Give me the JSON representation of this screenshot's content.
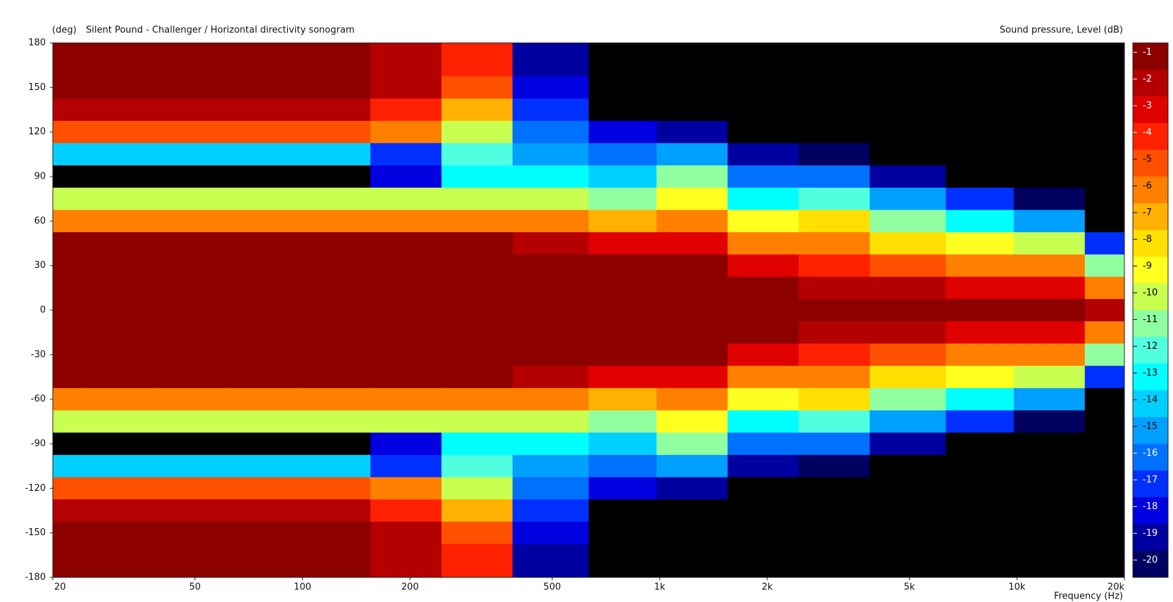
{
  "chart_data": {
    "type": "heatmap",
    "title": "Silent Pound - Challenger / Horizontal directivity sonogram",
    "ylabel": "(deg)",
    "zlabel": "Sound pressure, Level  (dB)",
    "xlabel": "Frequency  (Hz)",
    "log_x": true,
    "xlim": [
      20,
      20000
    ],
    "ylim": [
      -180,
      180
    ],
    "xticks": [
      20,
      50,
      100,
      200,
      500,
      {
        "value": 1000,
        "label": "1k"
      },
      {
        "value": 2000,
        "label": "2k"
      },
      {
        "value": 5000,
        "label": "5k"
      },
      {
        "value": 10000,
        "label": "10k"
      },
      {
        "value": 20000,
        "label": "20k"
      }
    ],
    "yticks": [
      180,
      150,
      120,
      90,
      60,
      30,
      0,
      -30,
      -60,
      -90,
      -120,
      -150,
      -180
    ],
    "colorbar": {
      "levels": [
        -1,
        -2,
        -3,
        -4,
        -5,
        -6,
        -7,
        -8,
        -9,
        -10,
        -11,
        -12,
        -13,
        -14,
        -15,
        -16,
        -17,
        -18,
        -19,
        -20
      ],
      "colors": [
        "#8c0000",
        "#b40000",
        "#e00000",
        "#ff2000",
        "#ff5000",
        "#ff8000",
        "#ffb000",
        "#ffe000",
        "#ffff20",
        "#c8ff50",
        "#90ffa0",
        "#50ffe0",
        "#00ffff",
        "#00d0ff",
        "#00a0ff",
        "#0070ff",
        "#0030ff",
        "#0000e0",
        "#0000a0",
        "#000060"
      ],
      "below_color": "#000000"
    },
    "x": [
      20,
      30,
      50,
      80,
      120,
      200,
      300,
      500,
      800,
      1200,
      2000,
      3000,
      5000,
      8000,
      12000,
      20000
    ],
    "y": [
      180,
      165,
      150,
      135,
      120,
      105,
      90,
      75,
      60,
      45,
      30,
      15,
      0,
      -15,
      -30,
      -45,
      -60,
      -75,
      -90,
      -105,
      -120,
      -135,
      -150,
      -165,
      -180
    ],
    "values": [
      [
        -1,
        -1,
        -1,
        -1,
        -1,
        -2,
        -4,
        -19,
        -25,
        -25,
        -25,
        -25,
        -25,
        -25,
        -25,
        -25
      ],
      [
        -1,
        -1,
        -1,
        -1,
        -1,
        -2,
        -4,
        -19,
        -25,
        -25,
        -25,
        -25,
        -25,
        -25,
        -25,
        -25
      ],
      [
        -1,
        -1,
        -1,
        -1,
        -1,
        -2,
        -5,
        -18,
        -25,
        -25,
        -25,
        -25,
        -25,
        -25,
        -25,
        -25
      ],
      [
        -2,
        -2,
        -2,
        -2,
        -2,
        -4,
        -7,
        -17,
        -22,
        -23,
        -25,
        -25,
        -25,
        -25,
        -25,
        -25
      ],
      [
        -5,
        -5,
        -5,
        -5,
        -5,
        -6,
        -10,
        -16,
        -18,
        -19,
        -25,
        -25,
        -25,
        -25,
        -25,
        -25
      ],
      [
        -14,
        -14,
        -14,
        -14,
        -14,
        -17,
        -12,
        -15,
        -16,
        -15,
        -19,
        -20,
        -25,
        -25,
        -25,
        -25
      ],
      [
        -25,
        -25,
        -25,
        -25,
        -25,
        -18,
        -13,
        -13,
        -14,
        -11,
        -16,
        -16,
        -19,
        -22,
        -25,
        -25
      ],
      [
        -10,
        -10,
        -10,
        -10,
        -10,
        -10,
        -10,
        -10,
        -11,
        -9,
        -13,
        -12,
        -15,
        -17,
        -20,
        -25
      ],
      [
        -6,
        -6,
        -6,
        -6,
        -6,
        -6,
        -6,
        -6,
        -7,
        -6,
        -9,
        -8,
        -11,
        -13,
        -15,
        -25
      ],
      [
        -1,
        -1,
        -1,
        -1,
        -1,
        -1,
        -1,
        -2,
        -3,
        -3,
        -6,
        -6,
        -8,
        -9,
        -10,
        -17
      ],
      [
        -1,
        -1,
        -1,
        -1,
        -1,
        -1,
        -1,
        -1,
        -1,
        -1,
        -3,
        -4,
        -5,
        -6,
        -6,
        -11
      ],
      [
        -1,
        -1,
        -1,
        -1,
        -1,
        -1,
        -1,
        -1,
        -1,
        -1,
        -1,
        -2,
        -2,
        -3,
        -3,
        -6
      ],
      [
        -1,
        -1,
        -1,
        -1,
        -1,
        -1,
        -1,
        -1,
        -1,
        -1,
        -1,
        -1,
        -1,
        -1,
        -1,
        -2
      ],
      [
        -1,
        -1,
        -1,
        -1,
        -1,
        -1,
        -1,
        -1,
        -1,
        -1,
        -1,
        -2,
        -2,
        -3,
        -3,
        -6
      ],
      [
        -1,
        -1,
        -1,
        -1,
        -1,
        -1,
        -1,
        -1,
        -1,
        -1,
        -3,
        -4,
        -5,
        -6,
        -6,
        -11
      ],
      [
        -1,
        -1,
        -1,
        -1,
        -1,
        -1,
        -1,
        -2,
        -3,
        -3,
        -6,
        -6,
        -8,
        -9,
        -10,
        -17
      ],
      [
        -6,
        -6,
        -6,
        -6,
        -6,
        -6,
        -6,
        -6,
        -7,
        -6,
        -9,
        -8,
        -11,
        -13,
        -15,
        -25
      ],
      [
        -10,
        -10,
        -10,
        -10,
        -10,
        -10,
        -10,
        -10,
        -11,
        -9,
        -13,
        -12,
        -15,
        -17,
        -20,
        -25
      ],
      [
        -25,
        -25,
        -25,
        -25,
        -25,
        -18,
        -13,
        -13,
        -14,
        -11,
        -16,
        -16,
        -19,
        -22,
        -25,
        -25
      ],
      [
        -14,
        -14,
        -14,
        -14,
        -14,
        -17,
        -12,
        -15,
        -16,
        -15,
        -19,
        -20,
        -25,
        -25,
        -25,
        -25
      ],
      [
        -5,
        -5,
        -5,
        -5,
        -5,
        -6,
        -10,
        -16,
        -18,
        -19,
        -25,
        -25,
        -25,
        -25,
        -25,
        -25
      ],
      [
        -2,
        -2,
        -2,
        -2,
        -2,
        -4,
        -7,
        -17,
        -22,
        -23,
        -25,
        -25,
        -25,
        -25,
        -25,
        -25
      ],
      [
        -1,
        -1,
        -1,
        -1,
        -1,
        -2,
        -5,
        -18,
        -25,
        -25,
        -25,
        -25,
        -25,
        -25,
        -25,
        -25
      ],
      [
        -1,
        -1,
        -1,
        -1,
        -1,
        -2,
        -4,
        -19,
        -25,
        -25,
        -25,
        -25,
        -25,
        -25,
        -25,
        -25
      ],
      [
        -1,
        -1,
        -1,
        -1,
        -1,
        -2,
        -4,
        -19,
        -25,
        -25,
        -25,
        -25,
        -25,
        -25,
        -25,
        -25
      ]
    ]
  }
}
